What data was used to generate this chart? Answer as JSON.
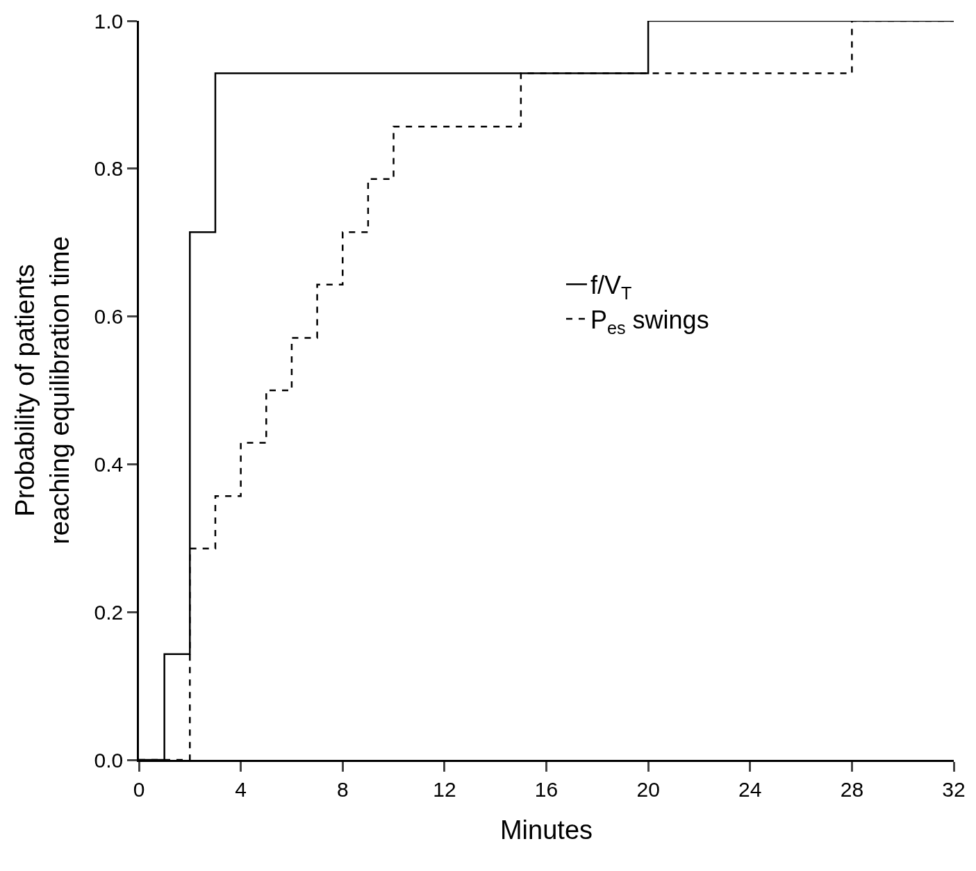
{
  "chart_data": {
    "type": "step",
    "xlabel": "Minutes",
    "ylabel": "Probability of patients\nreaching equilibration time",
    "xlim": [
      0,
      32
    ],
    "xticks": [
      0,
      4,
      8,
      12,
      16,
      20,
      24,
      28,
      32
    ],
    "ylim": [
      0,
      1.0
    ],
    "yticks": [
      {
        "value": 0,
        "label": "0.0"
      },
      {
        "value": 0.2,
        "label": "0.2"
      },
      {
        "value": 0.4,
        "label": "0.4"
      },
      {
        "value": 0.6,
        "label": "0.6"
      },
      {
        "value": 0.8,
        "label": "0.8"
      },
      {
        "value": 1.0,
        "label": "1.0"
      }
    ],
    "legend": "right",
    "marker": "none",
    "series": [
      {
        "name": "f/V$_{T}$",
        "color": "#000000",
        "line_style": "solid",
        "x": [
          0,
          1,
          2,
          3,
          20,
          32
        ],
        "values": [
          0,
          0.143,
          0.714,
          0.929,
          1.0,
          1.0
        ]
      },
      {
        "name": "P$_{es}$ swings",
        "color": "#000000",
        "line_style": "dashed",
        "x": [
          0,
          2,
          3,
          4,
          5,
          6,
          7,
          8,
          9,
          10,
          15,
          28,
          32
        ],
        "values": [
          0,
          0.286,
          0.357,
          0.429,
          0.5,
          0.571,
          0.643,
          0.714,
          0.786,
          0.857,
          0.929,
          1.0,
          1.0
        ]
      }
    ]
  }
}
